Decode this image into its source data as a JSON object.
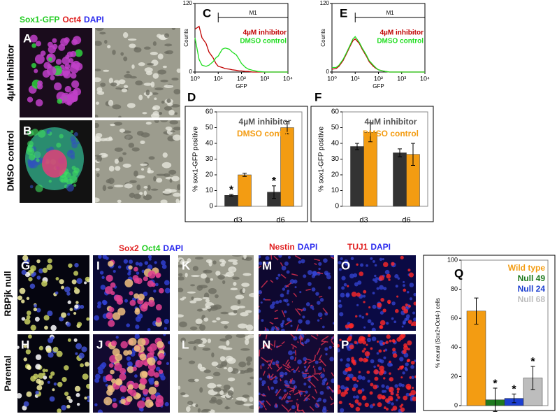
{
  "panel_labels": [
    "A",
    "B",
    "G",
    "H",
    "I",
    "J",
    "K",
    "L",
    "M",
    "N",
    "O",
    "P"
  ],
  "stains": {
    "sox1": [
      {
        "text": "Sox1-GFP",
        "color": "#22cc22"
      },
      {
        "text": "Oct4",
        "color": "#e02020"
      },
      {
        "text": "DAPI",
        "color": "#2a2aee"
      }
    ],
    "sox2": [
      {
        "text": "Sox2",
        "color": "#e02020"
      },
      {
        "text": "Oct4",
        "color": "#22cc22"
      },
      {
        "text": "DAPI",
        "color": "#2a2aee"
      }
    ],
    "nestin": [
      {
        "text": "Nestin",
        "color": "#e02020"
      },
      {
        "text": "DAPI",
        "color": "#2a2aee"
      }
    ],
    "tuj1": [
      {
        "text": "TUJ1",
        "color": "#e02020"
      },
      {
        "text": "DAPI",
        "color": "#2a2aee"
      }
    ]
  },
  "row_labels": {
    "inhibitor": "4µM inhibitor",
    "dmso": "DMSO control",
    "null": "RBPjk null",
    "parental": "Parental"
  },
  "chart_data": [
    {
      "type": "line",
      "label": "C",
      "xlabel": "GFP",
      "ylabel": "Counts",
      "log_x": true,
      "x": [
        1,
        1.5,
        2,
        3,
        4,
        6,
        8,
        10,
        15,
        20,
        30,
        40,
        60,
        80,
        100,
        150,
        200,
        300,
        500,
        1000,
        10000
      ],
      "xlim": [
        1,
        10000
      ],
      "xticks": [
        {
          "value": 1,
          "label": "10⁰"
        },
        {
          "value": 10,
          "label": "10¹"
        },
        {
          "value": 100,
          "label": "10²"
        },
        {
          "value": 1000,
          "label": "10³"
        },
        {
          "value": 10000,
          "label": "10⁴"
        }
      ],
      "ylim": [
        0,
        120
      ],
      "yticks": [
        0,
        120
      ],
      "gate": {
        "label": "M1",
        "range": [
          10,
          10000
        ]
      },
      "series": [
        {
          "name": "4µM inhibitor",
          "color": "#c00000",
          "values": [
            75,
            80,
            60,
            50,
            35,
            25,
            15,
            10,
            8,
            6,
            5,
            4,
            3,
            2,
            2,
            1,
            1,
            0,
            0,
            0,
            0
          ]
        },
        {
          "name": "DMSO control",
          "color": "#22dd22",
          "values": [
            60,
            22,
            12,
            10,
            12,
            18,
            25,
            28,
            40,
            42,
            40,
            35,
            30,
            22,
            15,
            8,
            5,
            3,
            1,
            0,
            0
          ]
        }
      ]
    },
    {
      "type": "line",
      "label": "E",
      "xlabel": "GFP",
      "ylabel": "Counts",
      "log_x": true,
      "x": [
        1,
        1.5,
        2,
        3,
        4,
        6,
        8,
        10,
        15,
        20,
        30,
        40,
        60,
        80,
        100,
        150,
        200,
        300,
        500,
        1000,
        10000
      ],
      "xlim": [
        1,
        10000
      ],
      "xticks": [
        {
          "value": 1,
          "label": "10⁰"
        },
        {
          "value": 10,
          "label": "10¹"
        },
        {
          "value": 100,
          "label": "10²"
        },
        {
          "value": 1000,
          "label": "10³"
        },
        {
          "value": 10000,
          "label": "10⁴"
        }
      ],
      "ylim": [
        0,
        120
      ],
      "yticks": [
        0,
        120
      ],
      "gate": {
        "label": "M1",
        "range": [
          10,
          10000
        ]
      },
      "series": [
        {
          "name": "4µM inhibitor",
          "color": "#c00000",
          "values": [
            5,
            6,
            10,
            20,
            30,
            45,
            55,
            58,
            50,
            40,
            28,
            18,
            10,
            6,
            4,
            2,
            1,
            0,
            0,
            0,
            0
          ]
        },
        {
          "name": "DMSO control",
          "color": "#22dd22",
          "values": [
            8,
            8,
            12,
            22,
            32,
            47,
            58,
            62,
            52,
            42,
            30,
            20,
            12,
            7,
            4,
            2,
            1,
            0,
            0,
            0,
            0
          ]
        }
      ]
    },
    {
      "type": "bar",
      "label": "D",
      "ylabel": "% sox1-GFP positive",
      "categories": [
        "d3",
        "d6"
      ],
      "ylim": [
        0,
        60
      ],
      "yticks": [
        0,
        10,
        20,
        30,
        40,
        50,
        60
      ],
      "series": [
        {
          "name": "4µM inhibitor",
          "color": "#333333",
          "values": [
            7,
            9
          ],
          "errors": [
            0.5,
            4
          ],
          "annotations": [
            "*",
            "*"
          ]
        },
        {
          "name": "DMSO control",
          "color": "#f39c12",
          "values": [
            20,
            50
          ],
          "errors": [
            1,
            4
          ]
        }
      ]
    },
    {
      "type": "bar",
      "label": "F",
      "ylabel": "% sox1-GFP positive",
      "categories": [
        "d3",
        "d6"
      ],
      "ylim": [
        0,
        60
      ],
      "yticks": [
        0,
        10,
        20,
        30,
        40,
        50,
        60
      ],
      "series": [
        {
          "name": "4µM inhibitor",
          "color": "#333333",
          "values": [
            38,
            34
          ],
          "errors": [
            2,
            2.5
          ]
        },
        {
          "name": "DMSO control",
          "color": "#f39c12",
          "values": [
            47,
            33
          ],
          "errors": [
            6,
            7
          ]
        }
      ]
    },
    {
      "type": "bar",
      "label": "Q",
      "ylabel": "% neural  (Sox2+Oct4-) cells",
      "categories": [
        null
      ],
      "ylim": [
        0,
        100
      ],
      "yticks": [
        0,
        20,
        40,
        60,
        80,
        100
      ],
      "series": [
        {
          "name": "Wild type",
          "color": "#f39c12",
          "values": [
            65
          ],
          "errors": [
            9
          ]
        },
        {
          "name": "Null 49",
          "color": "#1f7a1f",
          "values": [
            4
          ],
          "errors": [
            8
          ],
          "annotations": [
            "*"
          ]
        },
        {
          "name": "Null 24",
          "color": "#1c3fd0",
          "values": [
            5
          ],
          "errors": [
            3
          ],
          "annotations": [
            "*"
          ]
        },
        {
          "name": "Null 68",
          "color": "#bdbdbd",
          "values": [
            19
          ],
          "errors": [
            8
          ],
          "annotations": [
            "*"
          ]
        }
      ]
    }
  ]
}
